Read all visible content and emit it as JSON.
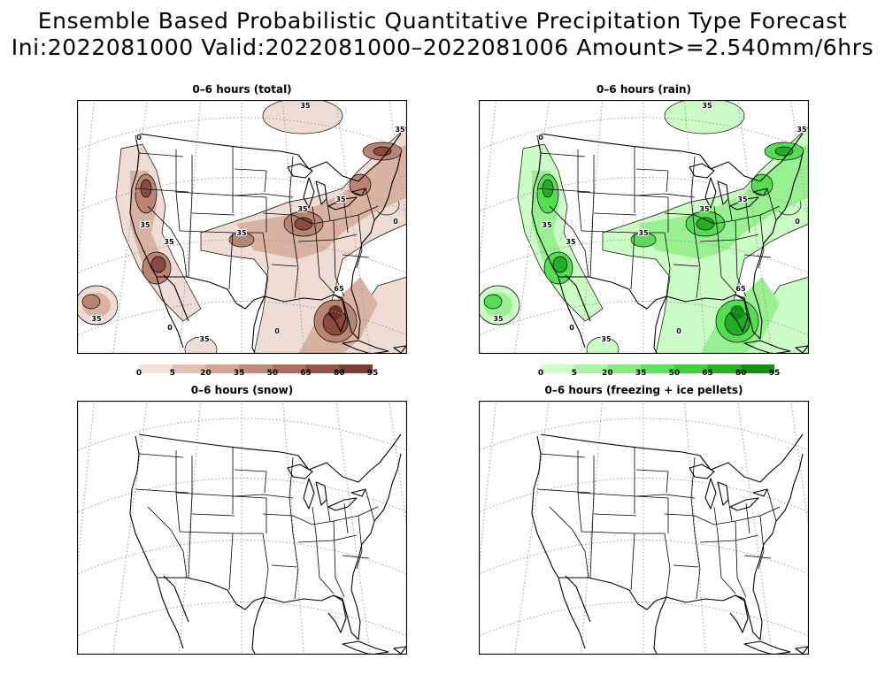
{
  "title_line1": "Ensemble Based Probabilistic Quantitative Precipitation Type Forecast",
  "title_line2": "Ini:2022081000 Valid:2022081000–2022081006 Amount>=2.540mm/6hrs",
  "panels": {
    "total": {
      "title": "0–6 hours (total)",
      "contour_labels": [
        "35",
        "35",
        "35",
        "35",
        "35",
        "35",
        "35",
        "65",
        "0",
        "0",
        "0",
        "0",
        "35",
        "35"
      ]
    },
    "rain": {
      "title": "0–6 hours (rain)",
      "contour_labels": [
        "35",
        "35",
        "35",
        "35",
        "35",
        "35",
        "35",
        "65",
        "0",
        "0",
        "0",
        "0",
        "35",
        "35"
      ]
    },
    "snow": {
      "title": "0–6 hours (snow)"
    },
    "ice": {
      "title": "0–6 hours (freezing + ice pellets)"
    }
  },
  "colorbars": {
    "total": {
      "labels": [
        "0",
        "5",
        "20",
        "35",
        "50",
        "65",
        "80",
        "95"
      ],
      "colors": [
        "#f1e1db",
        "#e2c2b5",
        "#d4a593",
        "#c3897a",
        "#ad6d60",
        "#96544b",
        "#7a3d35"
      ]
    },
    "rain": {
      "labels": [
        "0",
        "5",
        "20",
        "35",
        "50",
        "65",
        "80",
        "95"
      ],
      "colors": [
        "#cfffc8",
        "#a9f5a2",
        "#86ee80",
        "#5ee45a",
        "#3dd13b",
        "#24b424",
        "#109410"
      ]
    }
  }
}
